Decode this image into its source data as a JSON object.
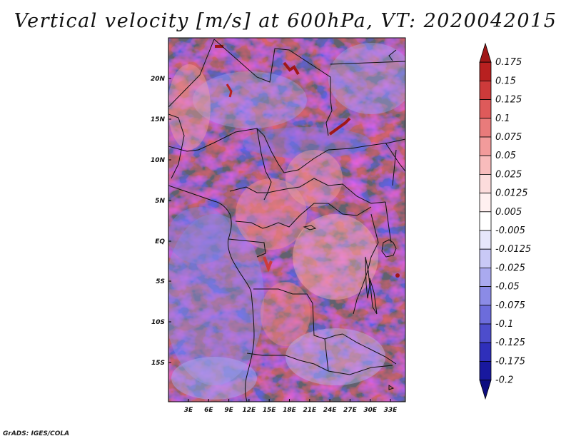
{
  "title": "Vertical velocity [m/s] at 600hPa, VT: 2020042015",
  "credit": "GrADS: IGES/COLA",
  "map": {
    "lat_labels": [
      "20N",
      "15N",
      "10N",
      "5N",
      "EQ",
      "5S",
      "10S",
      "15S"
    ],
    "lon_labels": [
      "3E",
      "6E",
      "9E",
      "12E",
      "15E",
      "18E",
      "21E",
      "24E",
      "27E",
      "30E",
      "33E"
    ]
  },
  "colorbar": {
    "labels": [
      "0.175",
      "0.15",
      "0.125",
      "0.1",
      "0.075",
      "0.05",
      "0.025",
      "0.0125",
      "0.005",
      "-0.005",
      "-0.0125",
      "-0.025",
      "-0.05",
      "-0.075",
      "-0.1",
      "-0.125",
      "-0.175",
      "-0.2"
    ],
    "colors": [
      "#a01717",
      "#b82020",
      "#cd3a3a",
      "#de5a5a",
      "#e97b7b",
      "#f29b9b",
      "#f8bcbc",
      "#fcdcdc",
      "#fff0f0",
      "#ffffff",
      "#e6e6fb",
      "#c9c9f6",
      "#aaaaef",
      "#8b8be6",
      "#6c6cdb",
      "#4d4dcc",
      "#2f2fba",
      "#18189e",
      "#0c0c80"
    ]
  }
}
